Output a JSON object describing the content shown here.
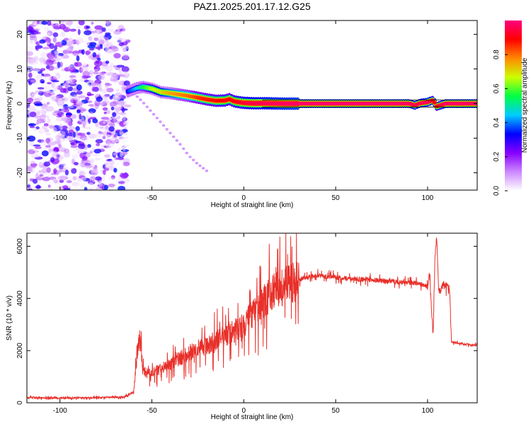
{
  "figure": {
    "title": "PAZ1.2025.201.17.12.G25"
  },
  "chart_data": [
    {
      "id": "spectrogram",
      "type": "heatmap",
      "title": "PAZ1.2025.201.17.12.G25",
      "xlabel": "Height of straight line (km)",
      "ylabel": "Frequency (Hz)",
      "xlim": [
        -118,
        127
      ],
      "ylim": [
        -25,
        24
      ],
      "xticks": [
        -100,
        -50,
        0,
        50,
        100
      ],
      "yticks": [
        -20,
        -10,
        0,
        10,
        20
      ],
      "colorbar": {
        "label": "Normalized spectral amplitude",
        "range": [
          0,
          1
        ],
        "ticks": [
          "0.0",
          "0.2",
          "0.4",
          "0.6",
          "0.8"
        ],
        "tick_values": [
          0,
          0.2,
          0.4,
          0.6,
          0.8
        ],
        "colors": [
          "#ffffff",
          "#cc88ff",
          "#8800ff",
          "#0000ff",
          "#00ccff",
          "#00ff44",
          "#ccff00",
          "#ff8800",
          "#ff0000",
          "#ff0080"
        ]
      },
      "noise_region": {
        "x": [
          -118,
          -63
        ],
        "y": [
          -25,
          24
        ],
        "peak_amplitude": 0.35
      },
      "signal_ridge": {
        "x": [
          -63,
          -58,
          -55,
          -50,
          -45,
          -40,
          -35,
          -30,
          -25,
          -20,
          -15,
          -10,
          -8,
          -5,
          0,
          5,
          10,
          20,
          30,
          40,
          50,
          60,
          70,
          80,
          90,
          93,
          96,
          100,
          103,
          105,
          110,
          127
        ],
        "freq": [
          3.5,
          4.5,
          4.8,
          4.3,
          3.3,
          3.0,
          2.6,
          2.2,
          1.7,
          1.2,
          0.8,
          0.9,
          1.3,
          0.6,
          0.2,
          0.1,
          0.1,
          0.0,
          0.0,
          0.0,
          0.0,
          0.0,
          0.0,
          0.0,
          0.0,
          -0.5,
          0.1,
          0.4,
          1.0,
          -0.8,
          0.0,
          0.0
        ],
        "amplitude": [
          0.35,
          0.45,
          0.55,
          0.65,
          0.7,
          0.75,
          0.78,
          0.8,
          0.85,
          0.87,
          0.88,
          0.9,
          0.88,
          0.9,
          0.93,
          0.95,
          0.96,
          0.97,
          0.98,
          0.99,
          0.99,
          0.99,
          0.99,
          0.99,
          0.98,
          0.95,
          0.95,
          0.97,
          0.9,
          0.9,
          0.98,
          0.98
        ]
      },
      "secondary_trace": {
        "x": [
          -58,
          -55,
          -50,
          -45,
          -40,
          -35,
          -30,
          -25,
          -20
        ],
        "freq": [
          2.0,
          0.5,
          -2.5,
          -5.5,
          -8.5,
          -11.5,
          -15.0,
          -17.5,
          -19.5
        ],
        "amplitude": 0.12
      }
    },
    {
      "id": "snr",
      "type": "line",
      "xlabel": "Height of straight line (km)",
      "ylabel": "SNR (10 * v/v)",
      "xlim": [
        -118,
        127
      ],
      "ylim": [
        0,
        6500
      ],
      "xticks": [
        -100,
        -50,
        0,
        50,
        100
      ],
      "yticks": [
        0,
        2000,
        4000,
        6000
      ],
      "series": [
        {
          "color": "#e8302a",
          "x": [
            -118,
            -100,
            -80,
            -65,
            -60,
            -58,
            -57,
            -56,
            -55,
            -53,
            -50,
            -45,
            -40,
            -35,
            -30,
            -25,
            -20,
            -15,
            -10,
            -5,
            0,
            5,
            10,
            15,
            20,
            25,
            30,
            35,
            40,
            45,
            50,
            55,
            60,
            65,
            70,
            75,
            80,
            85,
            90,
            95,
            100,
            101,
            102,
            103,
            104,
            105,
            106,
            108,
            110,
            112,
            113,
            115,
            120,
            127
          ],
          "y": [
            200,
            180,
            200,
            220,
            400,
            1800,
            2600,
            2200,
            1300,
            1100,
            1150,
            1300,
            1500,
            1700,
            1900,
            2100,
            2200,
            2400,
            2600,
            2750,
            3000,
            3400,
            3800,
            4200,
            4400,
            4550,
            4700,
            4820,
            4880,
            4850,
            4800,
            4780,
            4750,
            4720,
            4700,
            4680,
            4650,
            4620,
            4600,
            4580,
            4450,
            5000,
            3800,
            2500,
            5500,
            6400,
            4200,
            4500,
            4450,
            4400,
            2350,
            2300,
            2250,
            2200
          ]
        }
      ]
    }
  ]
}
